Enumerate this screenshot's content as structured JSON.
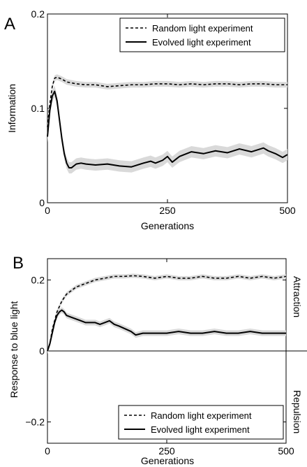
{
  "figure": {
    "panelA": {
      "letter": "A"
    },
    "panelB": {
      "letter": "B",
      "side_labels": {
        "top": "Attraction",
        "bottom": "Repulsion"
      }
    }
  },
  "colors": {
    "line": "#000000",
    "band": "#d9d9d9"
  },
  "chart_data": [
    {
      "type": "line",
      "panel": "A",
      "xlabel": "Generations",
      "ylabel": "Information",
      "xlim": [
        0,
        500
      ],
      "ylim": [
        0,
        0.2
      ],
      "xticks": [
        "0",
        "250",
        "500"
      ],
      "yticks": [
        "0",
        "0.1",
        "0.2"
      ],
      "legend_position": "top-right",
      "grid": false,
      "series": [
        {
          "name": "Random light experiment",
          "style": "dashed",
          "x": [
            0,
            5,
            10,
            15,
            20,
            30,
            40,
            60,
            80,
            100,
            125,
            150,
            175,
            200,
            225,
            250,
            275,
            300,
            325,
            350,
            375,
            400,
            425,
            450,
            475,
            500
          ],
          "y": [
            0.08,
            0.105,
            0.123,
            0.132,
            0.133,
            0.131,
            0.128,
            0.126,
            0.125,
            0.125,
            0.123,
            0.124,
            0.125,
            0.125,
            0.126,
            0.126,
            0.125,
            0.126,
            0.125,
            0.126,
            0.126,
            0.125,
            0.126,
            0.126,
            0.125,
            0.125
          ],
          "band": 0.003
        },
        {
          "name": "Evolved light experiment",
          "style": "solid",
          "x": [
            0,
            5,
            10,
            15,
            20,
            25,
            30,
            35,
            40,
            45,
            50,
            60,
            70,
            80,
            100,
            125,
            150,
            175,
            200,
            215,
            225,
            240,
            250,
            260,
            275,
            300,
            325,
            350,
            375,
            400,
            425,
            450,
            460,
            475,
            490,
            500
          ],
          "y": [
            0.07,
            0.098,
            0.113,
            0.118,
            0.108,
            0.088,
            0.068,
            0.052,
            0.042,
            0.037,
            0.037,
            0.041,
            0.042,
            0.041,
            0.04,
            0.041,
            0.039,
            0.038,
            0.042,
            0.044,
            0.042,
            0.045,
            0.049,
            0.043,
            0.049,
            0.054,
            0.052,
            0.055,
            0.053,
            0.057,
            0.054,
            0.058,
            0.055,
            0.052,
            0.048,
            0.051
          ],
          "band": 0.006
        }
      ]
    },
    {
      "type": "line",
      "panel": "B",
      "xlabel": "Generations",
      "ylabel": "Response to blue light",
      "xlim": [
        0,
        500
      ],
      "ylim": [
        -0.26,
        0.26
      ],
      "xticks": [
        "0",
        "250",
        "500"
      ],
      "yticks": [
        "−0.2",
        "0",
        "0.2"
      ],
      "ytick_values": [
        -0.2,
        0,
        0.2
      ],
      "legend_position": "bottom-right",
      "grid": false,
      "series": [
        {
          "name": "Random light experiment",
          "style": "dashed",
          "x": [
            0,
            5,
            10,
            20,
            30,
            40,
            50,
            60,
            80,
            100,
            120,
            140,
            160,
            180,
            200,
            225,
            250,
            275,
            300,
            325,
            350,
            375,
            400,
            425,
            450,
            475,
            500
          ],
          "y": [
            0.0,
            0.02,
            0.06,
            0.11,
            0.14,
            0.16,
            0.17,
            0.18,
            0.19,
            0.2,
            0.205,
            0.21,
            0.21,
            0.212,
            0.21,
            0.205,
            0.21,
            0.205,
            0.205,
            0.21,
            0.205,
            0.205,
            0.21,
            0.205,
            0.21,
            0.205,
            0.21
          ],
          "band": 0.006
        },
        {
          "name": "Evolved light experiment",
          "style": "solid",
          "x": [
            0,
            5,
            10,
            15,
            20,
            25,
            30,
            35,
            40,
            50,
            60,
            70,
            80,
            90,
            100,
            110,
            120,
            130,
            140,
            150,
            175,
            185,
            200,
            225,
            250,
            275,
            300,
            325,
            350,
            375,
            400,
            425,
            450,
            475,
            500
          ],
          "y": [
            0.0,
            0.02,
            0.05,
            0.08,
            0.1,
            0.11,
            0.115,
            0.11,
            0.1,
            0.095,
            0.09,
            0.085,
            0.08,
            0.08,
            0.08,
            0.075,
            0.08,
            0.085,
            0.075,
            0.07,
            0.055,
            0.045,
            0.05,
            0.05,
            0.05,
            0.055,
            0.05,
            0.05,
            0.055,
            0.05,
            0.05,
            0.055,
            0.05,
            0.05,
            0.05
          ],
          "band": 0.008
        }
      ]
    }
  ]
}
